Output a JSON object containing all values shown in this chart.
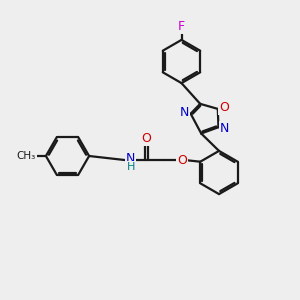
{
  "bg_color": "#eeeeee",
  "bond_color": "#1a1a1a",
  "N_color": "#0000cc",
  "O_color": "#cc0000",
  "F_color": "#cc00cc",
  "H_color": "#008080",
  "lw": 1.6,
  "figsize": [
    3.0,
    3.0
  ],
  "dpi": 100,
  "xlim": [
    0,
    10
  ],
  "ylim": [
    0,
    10
  ]
}
